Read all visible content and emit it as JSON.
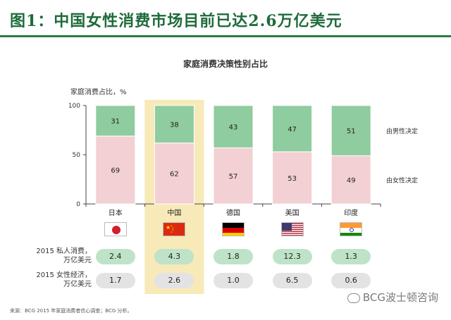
{
  "header": {
    "title": "图1：中国女性消费市场目前已达2.6万亿美元"
  },
  "chart_data": {
    "type": "bar",
    "stacked": true,
    "title": "家庭消费决策性别占比",
    "ylabel": "家庭消费占比，%",
    "ylim": [
      0,
      100
    ],
    "yticks": [
      0,
      50,
      100
    ],
    "categories": [
      "日本",
      "中国",
      "德国",
      "美国",
      "印度"
    ],
    "highlighted_category": "中国",
    "series": [
      {
        "name": "由女性决定",
        "values": [
          69,
          62,
          57,
          53,
          49
        ],
        "color": "#f2d0d3"
      },
      {
        "name": "由男性决定",
        "values": [
          31,
          38,
          43,
          47,
          51
        ],
        "color": "#8fcc9f"
      }
    ],
    "highlight_color": "#f7eab8"
  },
  "flags": [
    "japan-flag-icon",
    "china-flag-icon",
    "germany-flag-icon",
    "usa-flag-icon",
    "india-flag-icon"
  ],
  "table": {
    "rows": [
      {
        "label_line1": "2015 私人消费，",
        "label_line2": "万亿美元",
        "values": [
          "2.4",
          "4.3",
          "1.8",
          "12.3",
          "1.3"
        ],
        "style": "green"
      },
      {
        "label_line1": "2015 女性经济，",
        "label_line2": "万亿美元",
        "values": [
          "1.7",
          "2.6",
          "1.0",
          "6.5",
          "0.6"
        ],
        "style": "gray"
      }
    ]
  },
  "footnote": "来源：BCG 2015 年家庭消费者信心调查；BCG 分析。",
  "watermark": "BCG波士顿咨询"
}
